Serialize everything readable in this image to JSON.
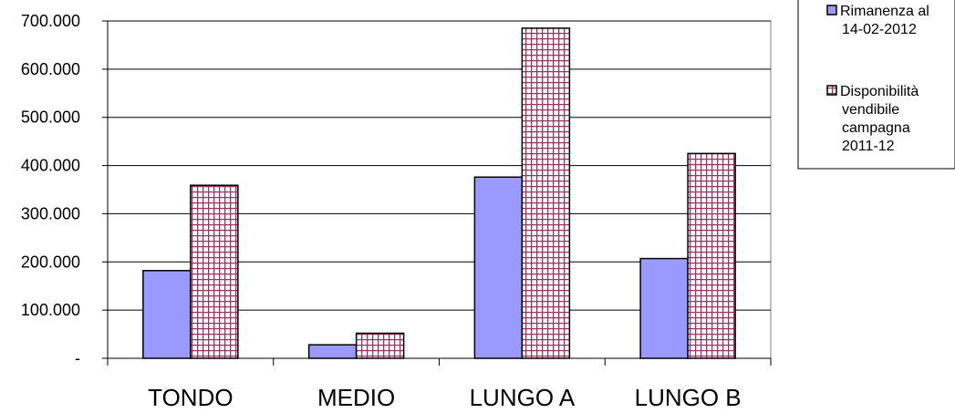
{
  "chart_data": {
    "type": "bar",
    "categories": [
      "TONDO",
      "MEDIO",
      "LUNGO A",
      "LUNGO B"
    ],
    "series": [
      {
        "name": "Rimanenza al 14-02-2012",
        "name_lines": [
          "Rimanenza al",
          "14-02-2012"
        ],
        "values": [
          182000,
          28000,
          376000,
          207000
        ],
        "color": "#9999ff",
        "pattern": "solid"
      },
      {
        "name": "Disponibilità vendibile campagna 2011-12",
        "name_lines": [
          "Disponibilità",
          "vendibile",
          "campagna",
          "2011-12"
        ],
        "values": [
          359000,
          52000,
          685000,
          425000
        ],
        "color": "#993366",
        "pattern": "grid"
      }
    ],
    "ylim": [
      0,
      700000
    ],
    "yticks": [
      0,
      100000,
      200000,
      300000,
      400000,
      500000,
      600000,
      700000
    ],
    "ytick_labels": [
      "-",
      "100.000",
      "200.000",
      "300.000",
      "400.000",
      "500.000",
      "600.000",
      "700.000"
    ],
    "grid": true,
    "legend": "right",
    "title": "",
    "xlabel": "",
    "ylabel": ""
  }
}
